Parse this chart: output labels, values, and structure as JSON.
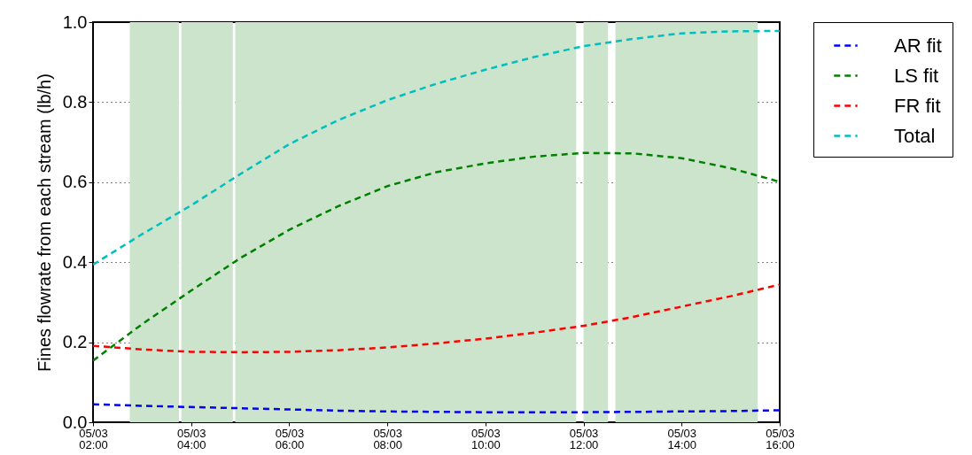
{
  "chart_data": {
    "type": "line",
    "ylabel": "Fines flowrate from each stream (lb/h)",
    "x": [
      "--05-03T02:00",
      "--05-03T03:00",
      "--05-03T04:00",
      "--05-03T05:00",
      "--05-03T06:00",
      "--05-03T07:00",
      "--05-03T08:00",
      "--05-03T09:00",
      "--05-03T10:00",
      "--05-03T11:00",
      "--05-03T12:00",
      "--05-03T13:00",
      "--05-03T14:00",
      "--05-03T15:00",
      "--05-03T16:00"
    ],
    "xlim": [
      "--05-03T02:00",
      "--05-03T16:00"
    ],
    "xticks": [
      {
        "value": "--05-03T02:00",
        "label": "05/03\n02:00"
      },
      {
        "value": "--05-03T04:00",
        "label": "05/03\n04:00"
      },
      {
        "value": "--05-03T06:00",
        "label": "05/03\n06:00"
      },
      {
        "value": "--05-03T08:00",
        "label": "05/03\n08:00"
      },
      {
        "value": "--05-03T10:00",
        "label": "05/03\n10:00"
      },
      {
        "value": "--05-03T12:00",
        "label": "05/03\n12:00"
      },
      {
        "value": "--05-03T14:00",
        "label": "05/03\n14:00"
      },
      {
        "value": "--05-03T16:00",
        "label": "05/03\n16:00"
      }
    ],
    "ylim": [
      0,
      1
    ],
    "yticks": [
      {
        "value": 0,
        "label": "0.0"
      },
      {
        "value": 0.2,
        "label": "0.2"
      },
      {
        "value": 0.4,
        "label": "0.4"
      },
      {
        "value": 0.6,
        "label": "0.6"
      },
      {
        "value": 0.8,
        "label": "0.8"
      },
      {
        "value": 1,
        "label": "1.0"
      }
    ],
    "series": [
      {
        "name": "AR fit",
        "color": "#0000ff",
        "values": [
          0.045,
          0.041,
          0.038,
          0.035,
          0.032,
          0.029,
          0.027,
          0.026,
          0.025,
          0.025,
          0.025,
          0.026,
          0.027,
          0.028,
          0.03
        ]
      },
      {
        "name": "LS fit",
        "color": "#008000",
        "values": [
          0.154,
          0.245,
          0.329,
          0.41,
          0.481,
          0.54,
          0.59,
          0.625,
          0.647,
          0.664,
          0.673,
          0.672,
          0.66,
          0.635,
          0.601
        ]
      },
      {
        "name": "FR fit",
        "color": "#ff0000",
        "values": [
          0.191,
          0.182,
          0.176,
          0.175,
          0.176,
          0.18,
          0.187,
          0.197,
          0.209,
          0.224,
          0.241,
          0.263,
          0.289,
          0.315,
          0.344
        ]
      },
      {
        "name": "Total",
        "color": "#00bfbf",
        "values": [
          0.394,
          0.47,
          0.542,
          0.62,
          0.695,
          0.755,
          0.805,
          0.846,
          0.881,
          0.913,
          0.94,
          0.958,
          0.972,
          0.977,
          0.978
        ]
      }
    ],
    "bands": [
      {
        "axis": "x",
        "from": "--05-03T02:45",
        "to": "--05-03T03:45",
        "color": "#cce3cc"
      },
      {
        "axis": "x",
        "from": "--05-03T03:48",
        "to": "--05-03T04:51",
        "color": "#cce3cc"
      },
      {
        "axis": "x",
        "from": "--05-03T04:54",
        "to": "--05-03T11:51",
        "color": "#cce3cc"
      },
      {
        "axis": "x",
        "from": "--05-03T12:00",
        "to": "--05-03T12:30",
        "color": "#cce3cc"
      },
      {
        "axis": "x",
        "from": "--05-03T12:39",
        "to": "--05-03T15:33",
        "color": "#cce3cc"
      }
    ],
    "grid": true,
    "legend": "right",
    "marker": "none",
    "line_style": "dashed"
  }
}
